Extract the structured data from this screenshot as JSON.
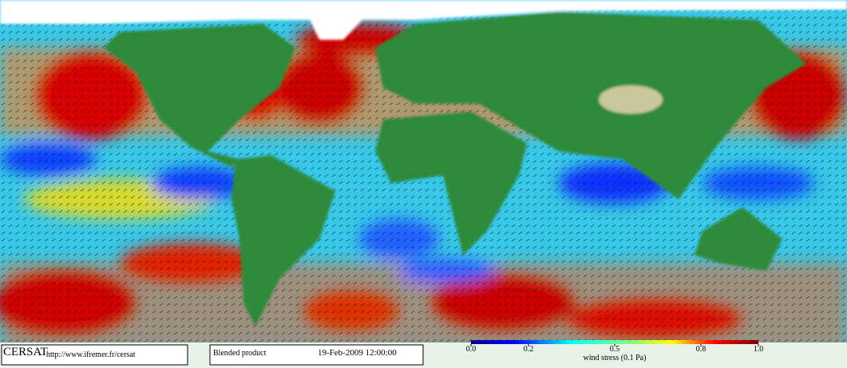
{
  "logo": "CERSAT",
  "url": "http://www.ifremer.fr/cersat",
  "product": "Blended product",
  "date": "19-Feb-2009 12:00:00",
  "colorbar": {
    "title": "wind stress (0.1 Pa)",
    "lim": [
      0,
      1
    ],
    "ticks": [
      {
        "value": 0,
        "label": "0.0"
      },
      0.2,
      0.5,
      0.8,
      {
        "value": 1,
        "label": "1.0"
      }
    ]
  }
}
